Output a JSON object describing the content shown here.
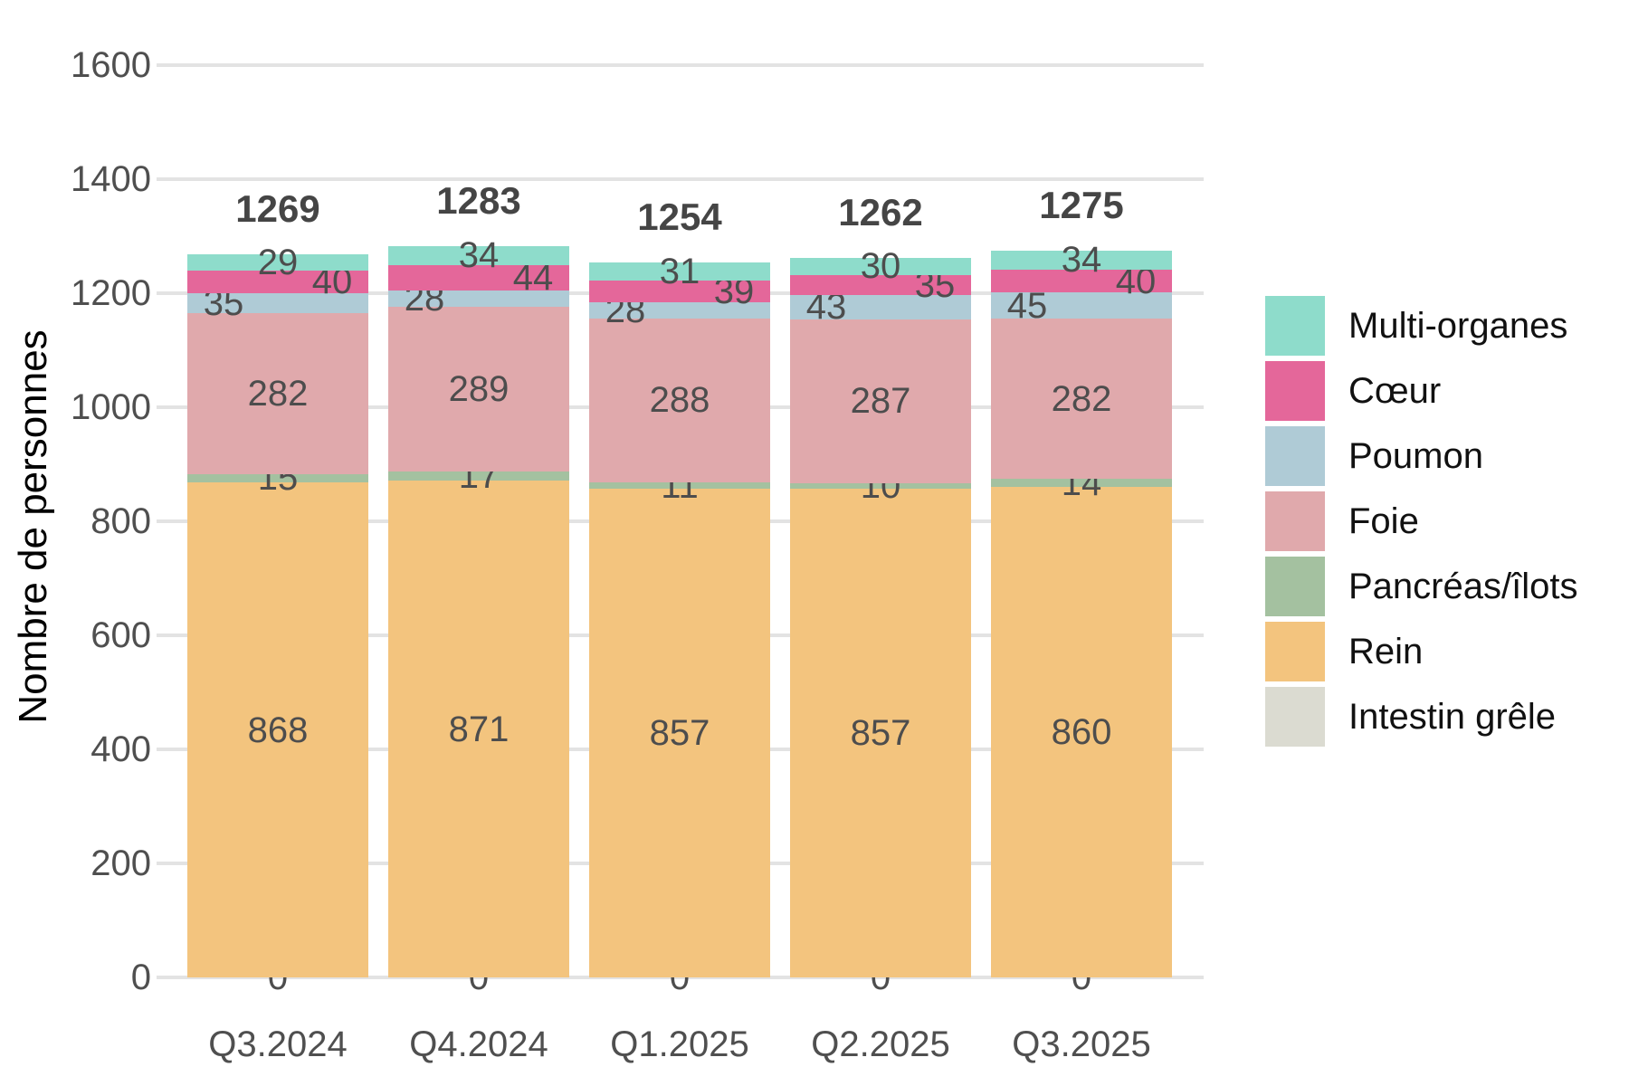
{
  "chart_data": {
    "type": "bar",
    "stacked": true,
    "title": "",
    "xlabel": "",
    "ylabel": "Nombre de personnes",
    "categories": [
      "Q3.2024",
      "Q4.2024",
      "Q1.2025",
      "Q2.2025",
      "Q3.2025"
    ],
    "series": [
      {
        "name": "Intestin grêle",
        "color": "#DBDBD1",
        "values": [
          0,
          0,
          0,
          0,
          0
        ]
      },
      {
        "name": "Rein",
        "color": "#F3C47E",
        "values": [
          868,
          871,
          857,
          857,
          860
        ]
      },
      {
        "name": "Pancréas/îlots",
        "color": "#A4C1A0",
        "values": [
          15,
          17,
          11,
          10,
          14
        ]
      },
      {
        "name": "Foie",
        "color": "#E0A9AC",
        "values": [
          282,
          289,
          288,
          287,
          282
        ]
      },
      {
        "name": "Poumon",
        "color": "#AFCBD6",
        "values": [
          35,
          28,
          28,
          43,
          45
        ]
      },
      {
        "name": "Cœur",
        "color": "#E4679A",
        "values": [
          40,
          44,
          39,
          35,
          40
        ]
      },
      {
        "name": "Multi-organes",
        "color": "#8EDCCB",
        "values": [
          29,
          34,
          31,
          30,
          34
        ]
      }
    ],
    "totals": [
      1269,
      1283,
      1254,
      1262,
      1275
    ],
    "legend": [
      {
        "label": "Multi-organes",
        "color": "#8EDCCB"
      },
      {
        "label": "Cœur",
        "color": "#E4679A"
      },
      {
        "label": "Poumon",
        "color": "#AFCBD6"
      },
      {
        "label": "Foie",
        "color": "#E0A9AC"
      },
      {
        "label": "Pancréas/îlots",
        "color": "#A4C1A0"
      },
      {
        "label": "Rein",
        "color": "#F3C47E"
      },
      {
        "label": "Intestin grêle",
        "color": "#DBDBD1"
      }
    ],
    "ylim": [
      0,
      1680
    ],
    "yticks": [
      0,
      200,
      400,
      600,
      800,
      1000,
      1200,
      1400,
      1600
    ],
    "grid": true,
    "legend_position": "right",
    "colors": {
      "background": "#FFFFFF",
      "gridline": "#E3E3E3",
      "axis_text": "#4F4F4F",
      "segment_label": "#4D4D4D",
      "total_label": "#454545",
      "legend_text": "#111111"
    }
  }
}
